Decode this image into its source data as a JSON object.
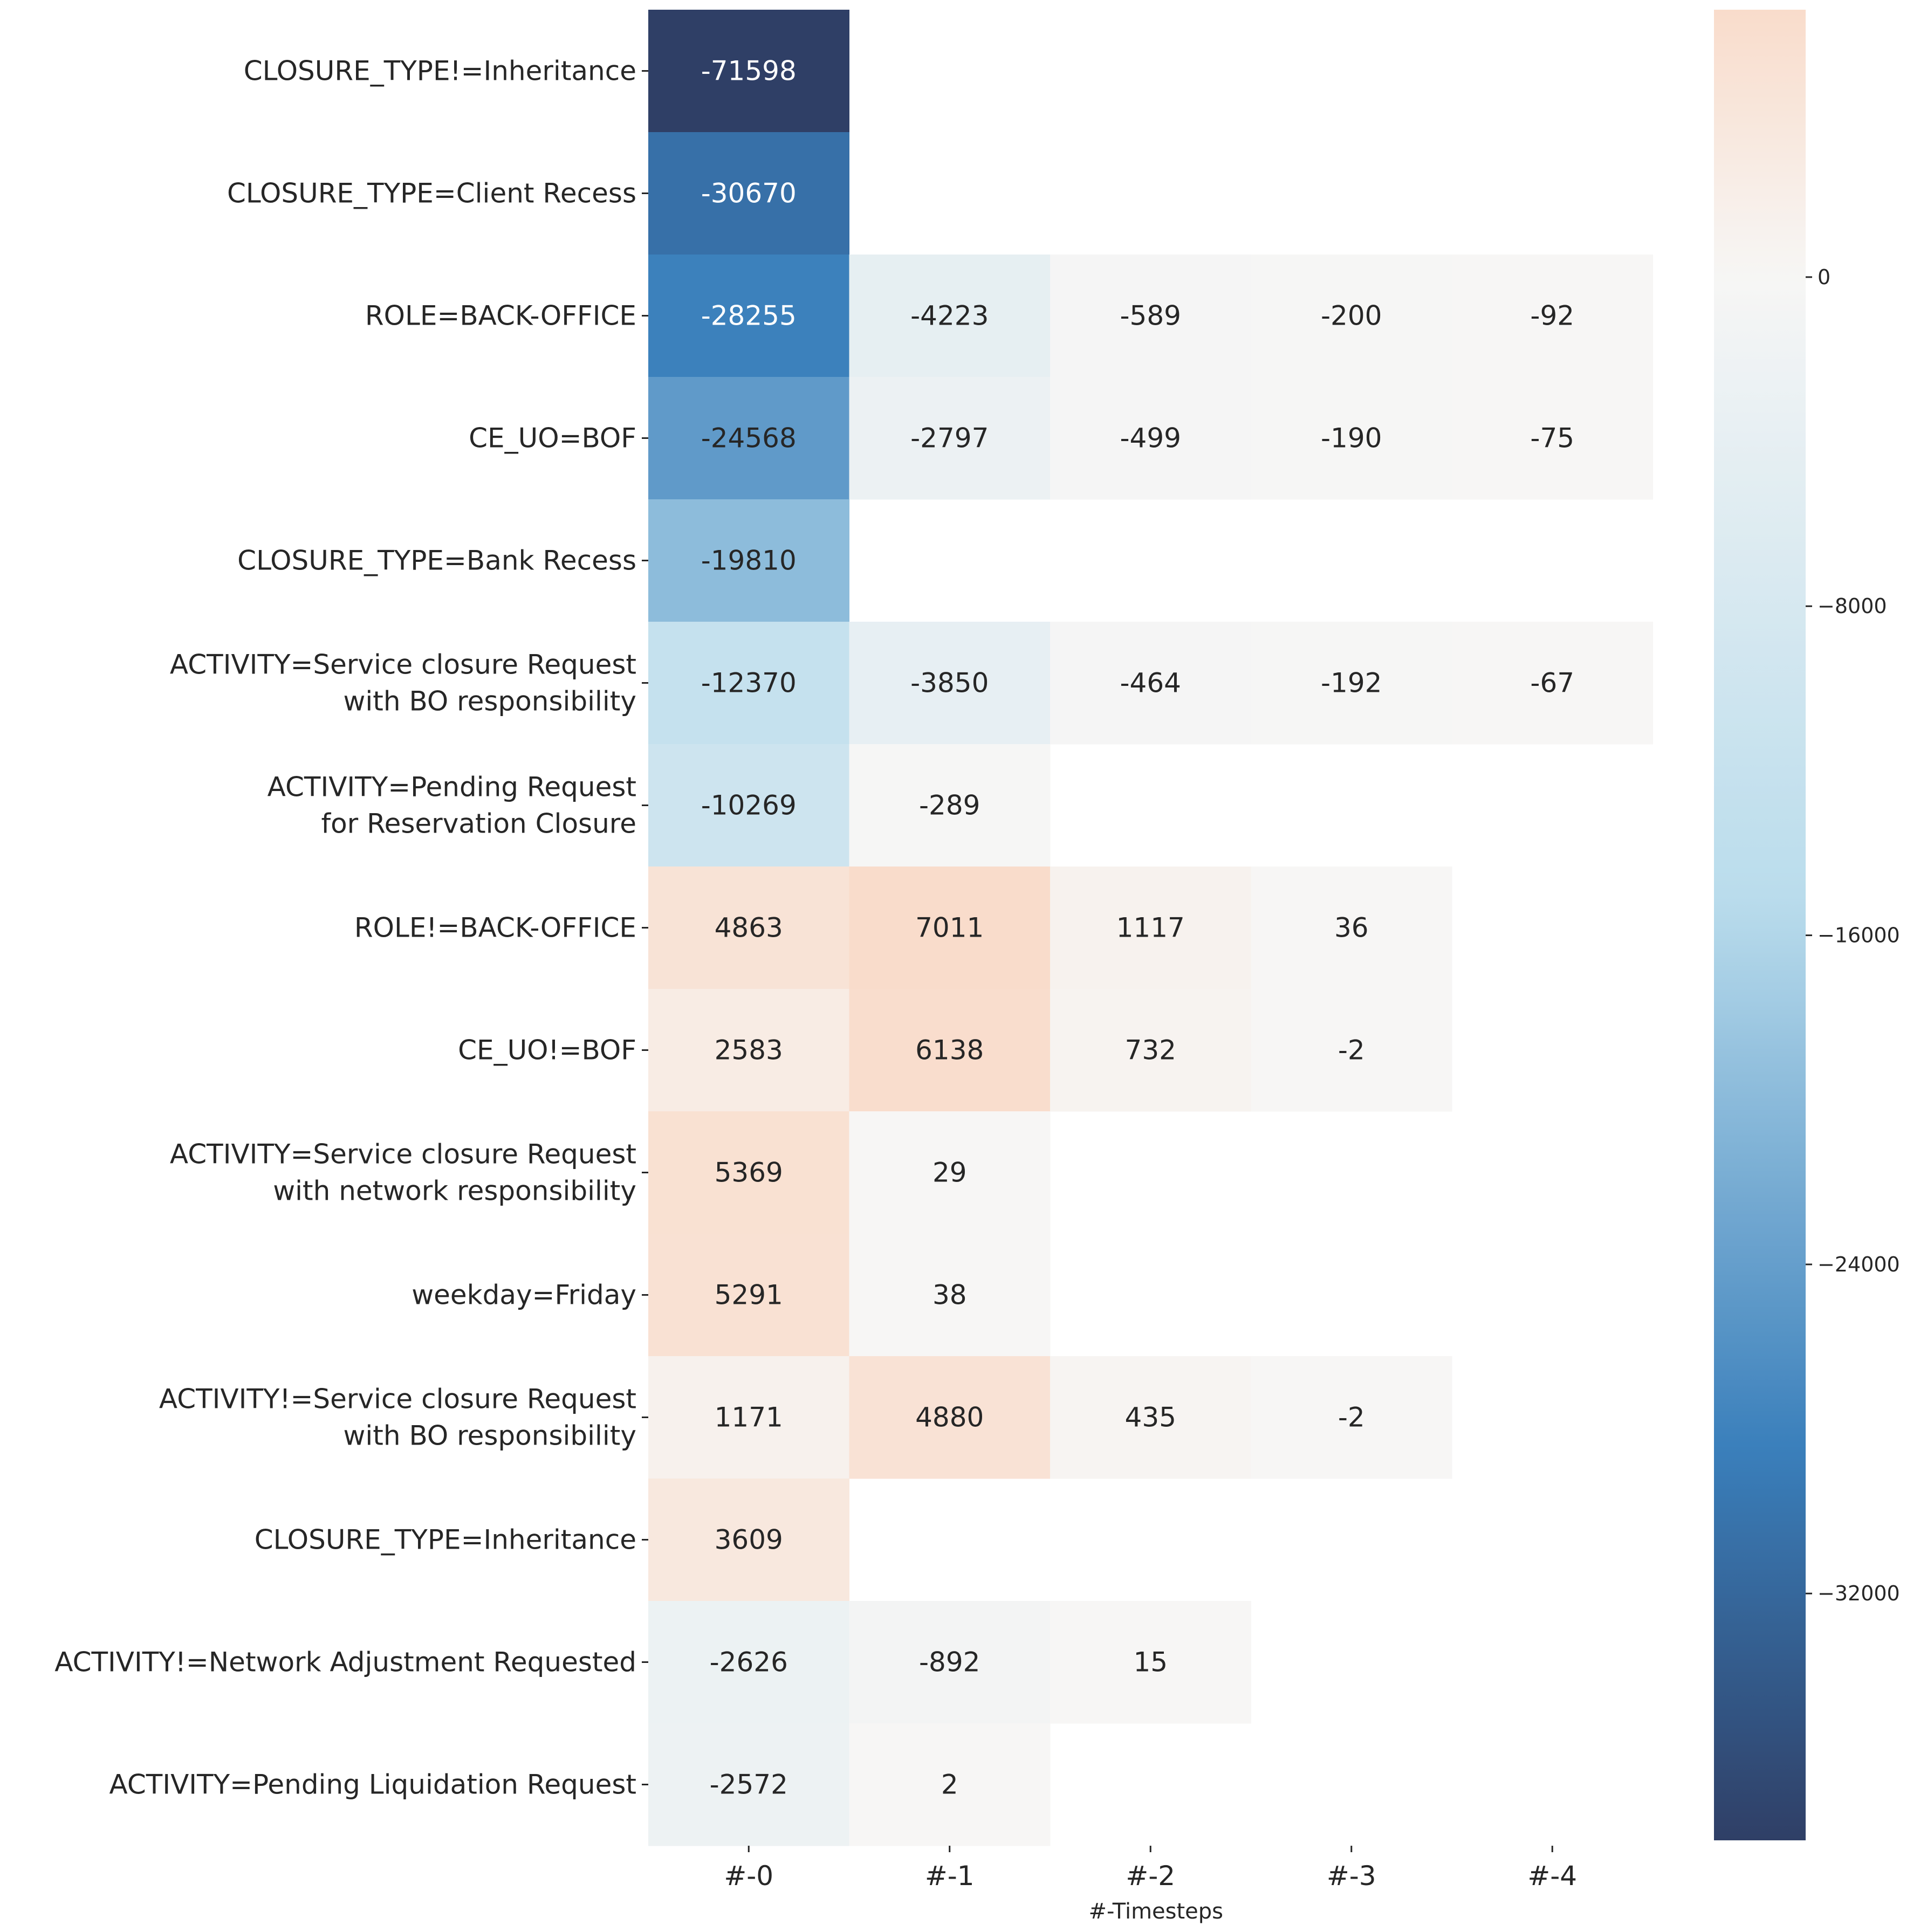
{
  "chart_data": {
    "type": "heatmap",
    "title": "",
    "xlabel": "#-Timesteps",
    "ylabel": "",
    "columns": [
      "#-0",
      "#-1",
      "#-2",
      "#-3",
      "#-4"
    ],
    "rows": [
      {
        "label": [
          "CLOSURE_TYPE!=Inheritance"
        ],
        "values": [
          -71598,
          null,
          null,
          null,
          null
        ]
      },
      {
        "label": [
          "CLOSURE_TYPE=Client Recess"
        ],
        "values": [
          -30670,
          null,
          null,
          null,
          null
        ]
      },
      {
        "label": [
          "ROLE=BACK-OFFICE"
        ],
        "values": [
          -28255,
          -4223,
          -589,
          -200,
          -92
        ]
      },
      {
        "label": [
          "CE_UO=BOF"
        ],
        "values": [
          -24568,
          -2797,
          -499,
          -190,
          -75
        ]
      },
      {
        "label": [
          "CLOSURE_TYPE=Bank Recess"
        ],
        "values": [
          -19810,
          null,
          null,
          null,
          null
        ]
      },
      {
        "label": [
          "ACTIVITY=Service closure Request",
          "with BO responsibility"
        ],
        "values": [
          -12370,
          -3850,
          -464,
          -192,
          -67
        ]
      },
      {
        "label": [
          "ACTIVITY=Pending Request",
          "for Reservation Closure"
        ],
        "values": [
          -10269,
          -289,
          null,
          null,
          null
        ]
      },
      {
        "label": [
          "ROLE!=BACK-OFFICE"
        ],
        "values": [
          4863,
          7011,
          1117,
          36,
          null
        ]
      },
      {
        "label": [
          "CE_UO!=BOF"
        ],
        "values": [
          2583,
          6138,
          732,
          -2,
          null
        ]
      },
      {
        "label": [
          "ACTIVITY=Service closure Request",
          "with network responsibility"
        ],
        "values": [
          5369,
          29,
          null,
          null,
          null
        ]
      },
      {
        "label": [
          "weekday=Friday"
        ],
        "values": [
          5291,
          38,
          null,
          null,
          null
        ]
      },
      {
        "label": [
          "ACTIVITY!=Service closure Request",
          "with BO responsibility"
        ],
        "values": [
          1171,
          4880,
          435,
          -2,
          null
        ]
      },
      {
        "label": [
          "CLOSURE_TYPE=Inheritance"
        ],
        "values": [
          3609,
          null,
          null,
          null,
          null
        ]
      },
      {
        "label": [
          "ACTIVITY!=Network Adjustment Requested"
        ],
        "values": [
          -2626,
          -892,
          15,
          null,
          null
        ]
      },
      {
        "label": [
          "ACTIVITY=Pending Liquidation Request"
        ],
        "values": [
          -2572,
          2,
          null,
          null,
          null
        ]
      }
    ],
    "colorbar": {
      "vmin": -38000,
      "vmax": 6500,
      "ticks": [
        0,
        -8000,
        -16000,
        -24000,
        -32000
      ],
      "tick_labels": [
        "0",
        "−8000",
        "−16000",
        "−24000",
        "−32000"
      ],
      "colormap": "diverging blue-white-orange, centered at 0",
      "colors": {
        "negative_end": "#2f3f66",
        "mid_blue": "#3a7fbb",
        "light_blue": "#b9dcec",
        "center": "#f7f6f5",
        "positive_end": "#f9dccb"
      }
    },
    "grid": false,
    "legend": "colorbar on right"
  }
}
